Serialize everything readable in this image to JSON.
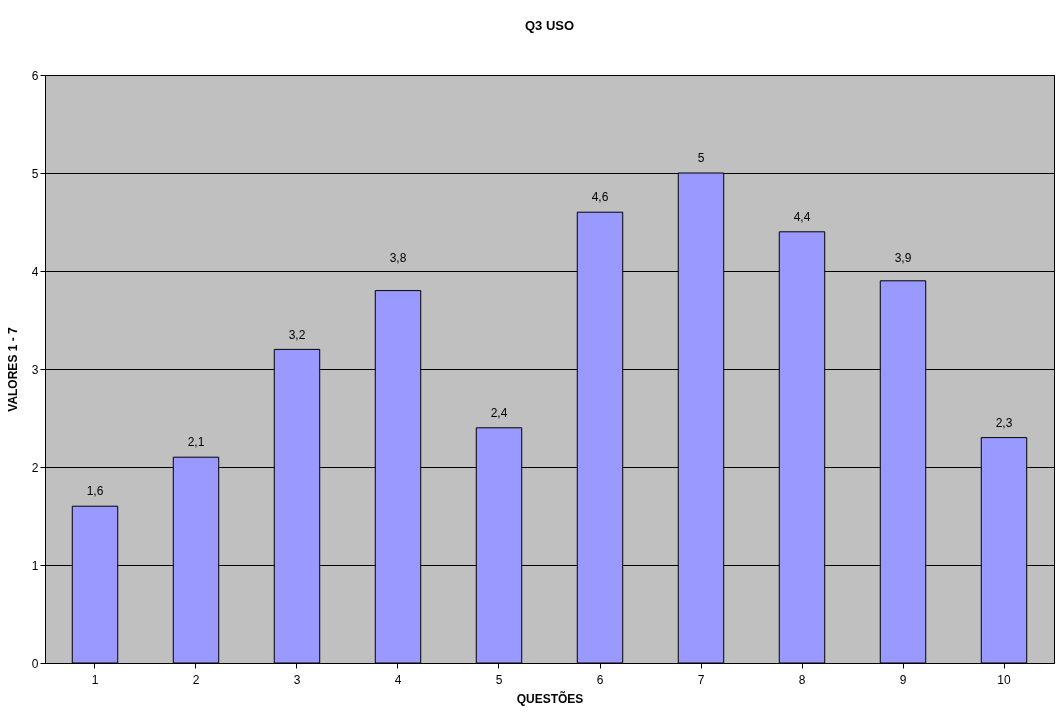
{
  "chart_data": {
    "type": "bar",
    "title": "Q3 USO",
    "xlabel": "QUESTÕES",
    "ylabel": "VALORES 1 - 7",
    "categories": [
      "1",
      "2",
      "3",
      "4",
      "5",
      "6",
      "7",
      "8",
      "9",
      "10"
    ],
    "values": [
      1.6,
      2.1,
      3.2,
      3.8,
      2.4,
      4.6,
      5,
      4.4,
      3.9,
      2.3
    ],
    "value_labels": [
      "1,6",
      "2,1",
      "3,2",
      "3,8",
      "2,4",
      "4,6",
      "5",
      "4,4",
      "3,9",
      "2,3"
    ],
    "color": "#9999ff",
    "ylim": [
      0,
      6
    ],
    "yticks": [
      0,
      1,
      2,
      3,
      4,
      5,
      6
    ],
    "grid": "y"
  }
}
